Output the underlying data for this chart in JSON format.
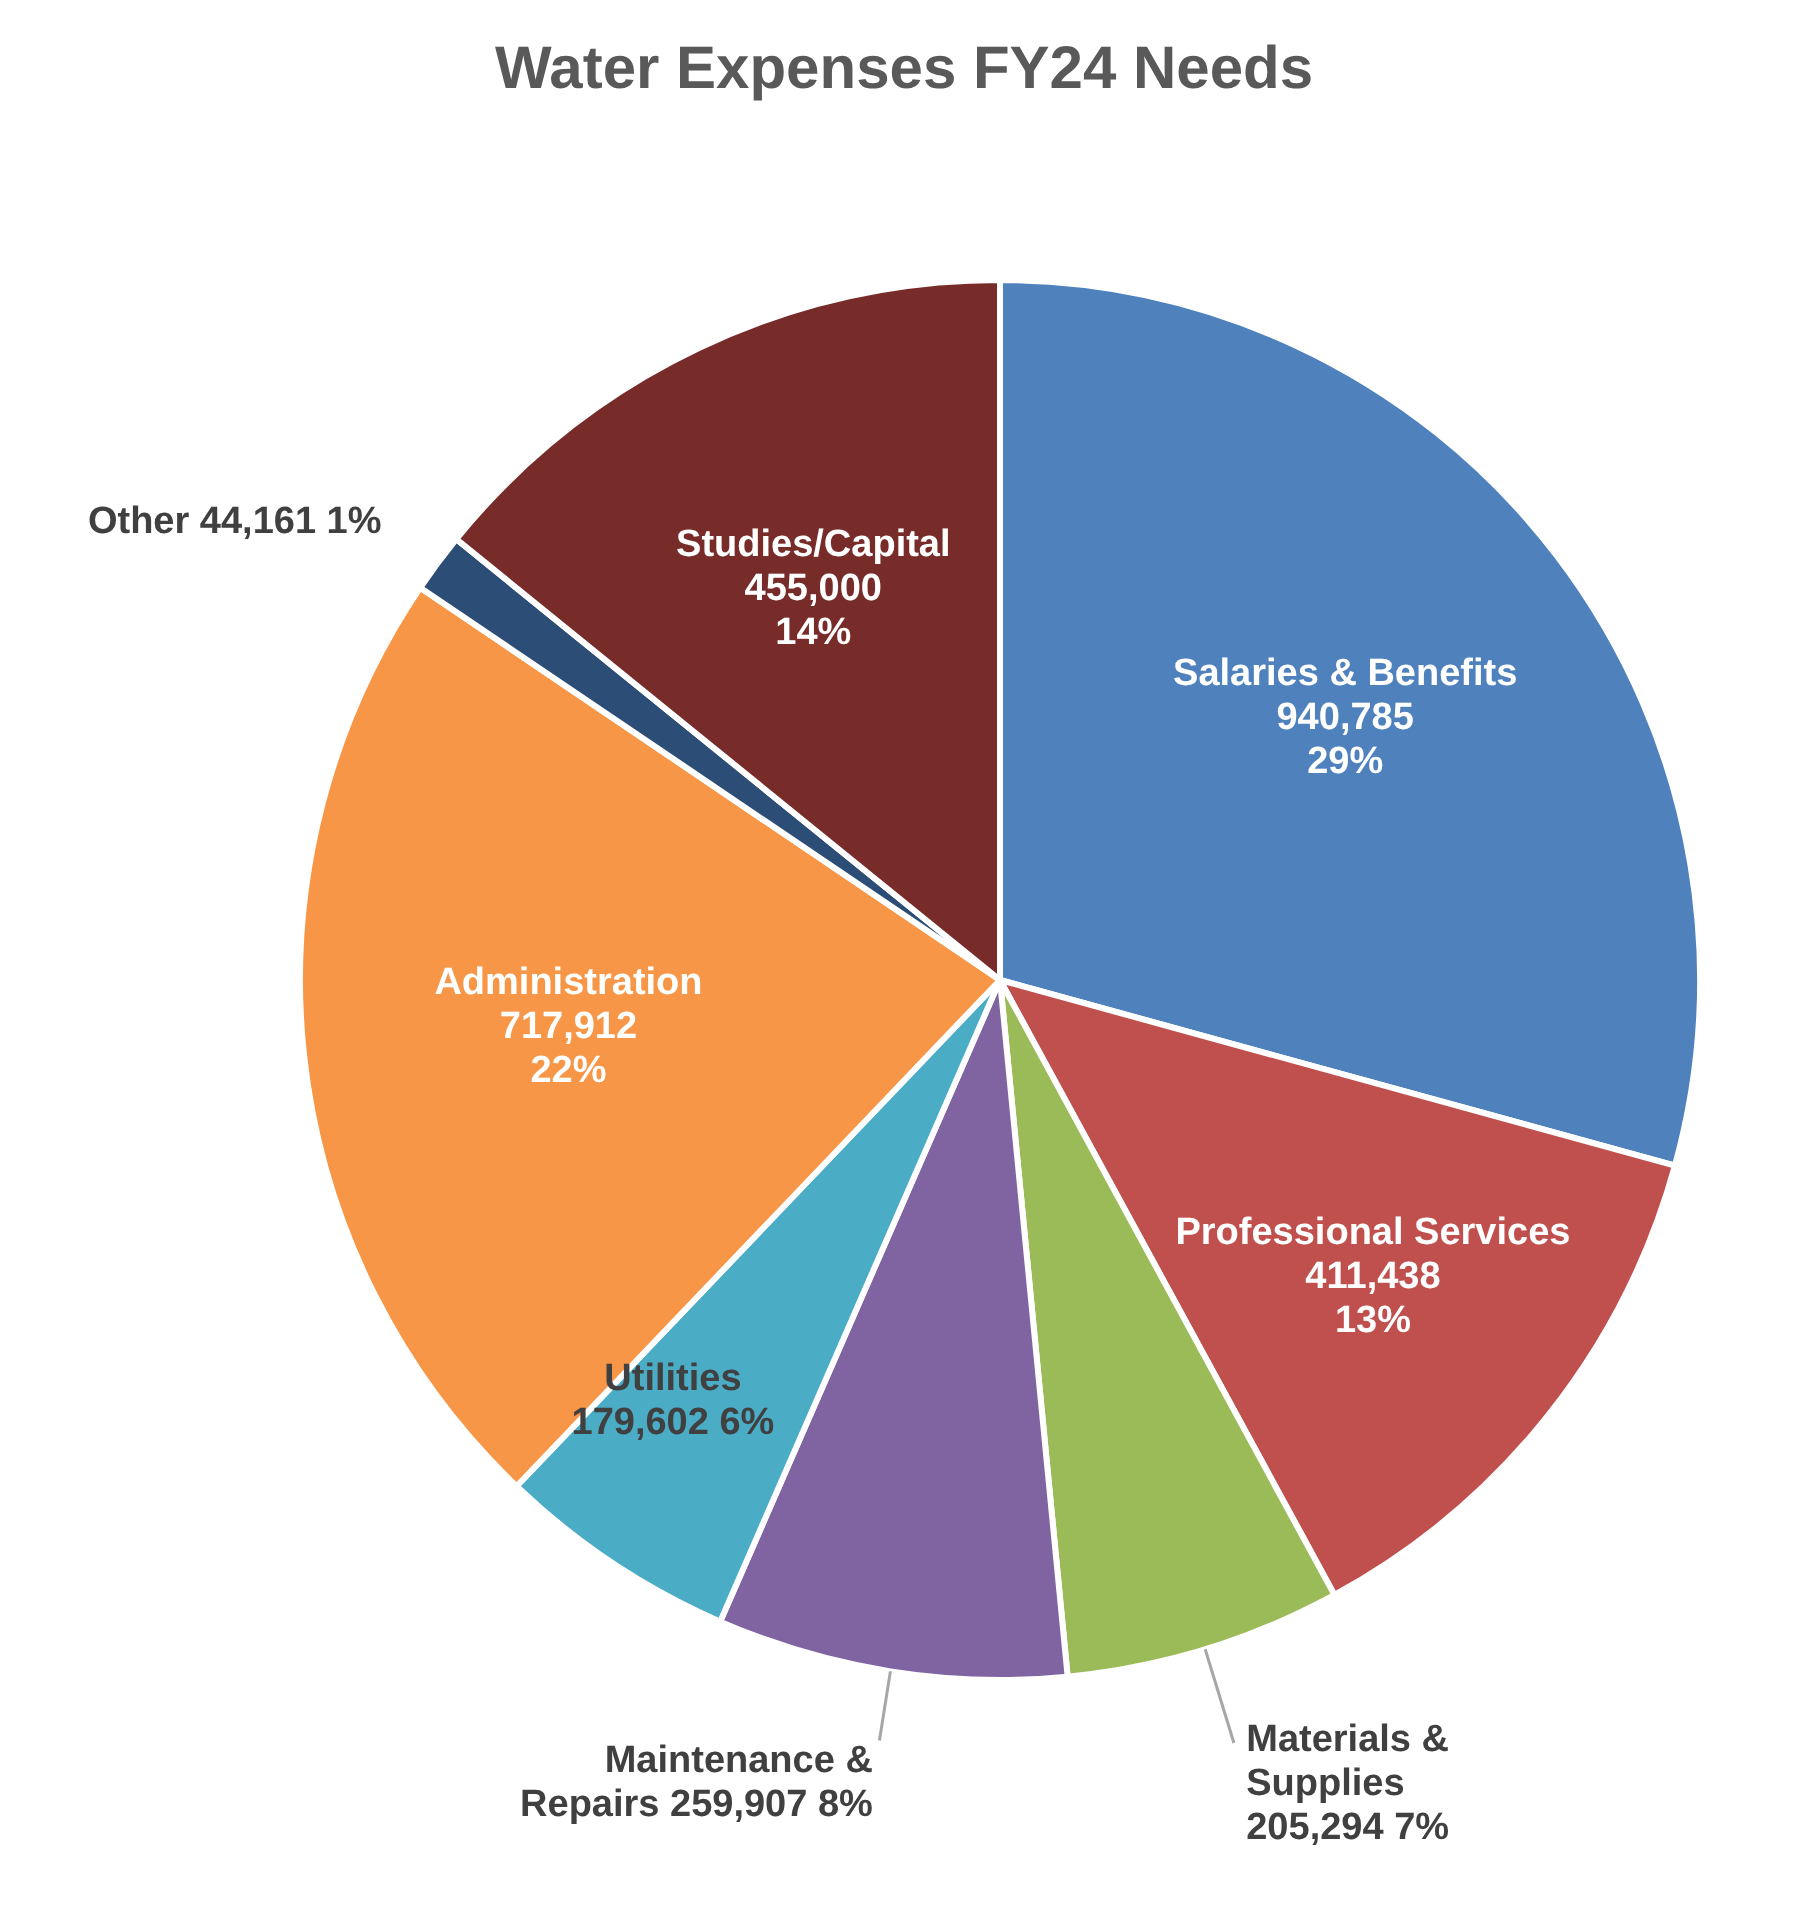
{
  "chart_data": {
    "type": "pie",
    "title": "Water Expenses FY24 Needs",
    "categories": [
      "Salaries & Benefits",
      "Professional Services",
      "Materials &\nSupplies",
      "Maintenance &\nRepairs",
      "Utilities",
      "Administration",
      "Other",
      "Studies/Capital"
    ],
    "values": [
      940785,
      411438,
      205294,
      259907,
      179602,
      717912,
      44161,
      455000
    ],
    "colors": [
      "#4f81bd",
      "#c0504d",
      "#9bbb59",
      "#8064a2",
      "#4bacc6",
      "#f79646",
      "#2c4d75",
      "#772c2a"
    ],
    "value_labels": [
      "940,785\n29%",
      "411,438\n13%",
      "205,294  7%",
      "259,907  8%",
      "179,602  6%",
      "717,912\n22%",
      "44,161  1%",
      "455,000\n14%"
    ],
    "legend": false
  }
}
